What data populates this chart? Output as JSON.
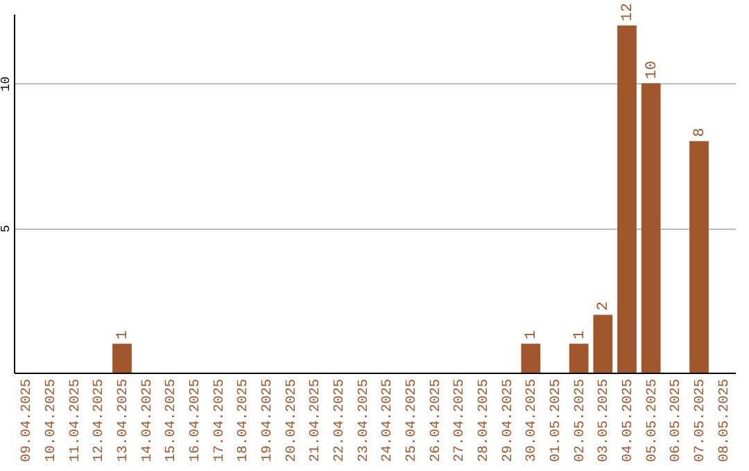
{
  "chart_data": {
    "type": "bar",
    "categories": [
      "09.04.2025",
      "10.04.2025",
      "11.04.2025",
      "12.04.2025",
      "13.04.2025",
      "14.04.2025",
      "15.04.2025",
      "16.04.2025",
      "17.04.2025",
      "18.04.2025",
      "19.04.2025",
      "20.04.2025",
      "21.04.2025",
      "22.04.2025",
      "23.04.2025",
      "24.04.2025",
      "25.04.2025",
      "26.04.2025",
      "27.04.2025",
      "28.04.2025",
      "29.04.2025",
      "30.04.2025",
      "01.05.2025",
      "02.05.2025",
      "03.05.2025",
      "04.05.2025",
      "05.05.2025",
      "06.05.2025",
      "07.05.2025",
      "08.05.2025"
    ],
    "values": [
      0,
      0,
      0,
      0,
      1,
      0,
      0,
      0,
      0,
      0,
      0,
      0,
      0,
      0,
      0,
      0,
      0,
      0,
      0,
      0,
      0,
      1,
      0,
      1,
      2,
      12,
      10,
      0,
      8,
      0
    ],
    "value_labels": [
      null,
      null,
      null,
      null,
      "1",
      null,
      null,
      null,
      null,
      null,
      null,
      null,
      null,
      null,
      null,
      null,
      null,
      null,
      null,
      null,
      null,
      "1",
      null,
      "1",
      "2",
      "12",
      "10",
      null,
      "8",
      null
    ],
    "color": "#a0562a",
    "ylim": [
      0,
      12.4
    ],
    "yticks": [
      5,
      10
    ],
    "grid": "y"
  }
}
